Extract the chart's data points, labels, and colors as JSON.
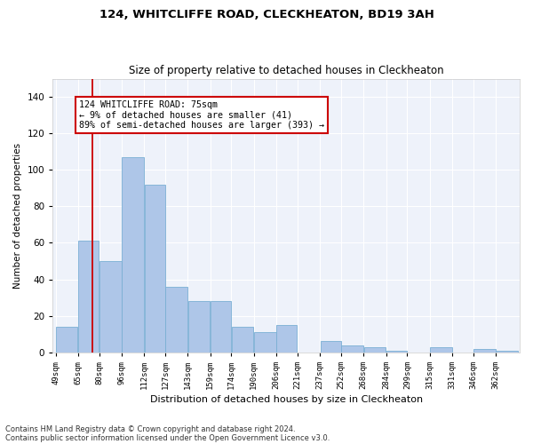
{
  "title": "124, WHITCLIFFE ROAD, CLECKHEATON, BD19 3AH",
  "subtitle": "Size of property relative to detached houses in Cleckheaton",
  "xlabel": "Distribution of detached houses by size in Cleckheaton",
  "ylabel": "Number of detached properties",
  "footnote1": "Contains HM Land Registry data © Crown copyright and database right 2024.",
  "footnote2": "Contains public sector information licensed under the Open Government Licence v3.0.",
  "annotation_line1": "124 WHITCLIFFE ROAD: 75sqm",
  "annotation_line2": "← 9% of detached houses are smaller (41)",
  "annotation_line3": "89% of semi-detached houses are larger (393) →",
  "bar_color": "#aec6e8",
  "bar_edge_color": "#7aafd4",
  "vline_color": "#cc0000",
  "vline_x": 75,
  "background_color": "#eef2fa",
  "categories": [
    "49sqm",
    "65sqm",
    "80sqm",
    "96sqm",
    "112sqm",
    "127sqm",
    "143sqm",
    "159sqm",
    "174sqm",
    "190sqm",
    "206sqm",
    "221sqm",
    "237sqm",
    "252sqm",
    "268sqm",
    "284sqm",
    "299sqm",
    "315sqm",
    "331sqm",
    "346sqm",
    "362sqm"
  ],
  "bin_edges": [
    49,
    65,
    80,
    96,
    112,
    127,
    143,
    159,
    174,
    190,
    206,
    221,
    237,
    252,
    268,
    284,
    299,
    315,
    331,
    346,
    362,
    378
  ],
  "values": [
    14,
    61,
    50,
    107,
    92,
    36,
    28,
    28,
    14,
    11,
    15,
    0,
    6,
    4,
    3,
    1,
    0,
    3,
    0,
    2,
    1
  ],
  "ylim": [
    0,
    150
  ],
  "yticks": [
    0,
    20,
    40,
    60,
    80,
    100,
    120,
    140
  ]
}
